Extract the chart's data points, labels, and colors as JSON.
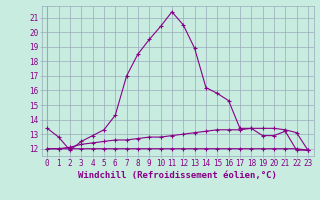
{
  "xlabel": "Windchill (Refroidissement éolien,°C)",
  "background_color": "#c8ece0",
  "grid_color": "#99aabb",
  "line_color": "#880088",
  "x": [
    0,
    1,
    2,
    3,
    4,
    5,
    6,
    7,
    8,
    9,
    10,
    11,
    12,
    13,
    14,
    15,
    16,
    17,
    18,
    19,
    20,
    21,
    22,
    23
  ],
  "curve1": [
    13.4,
    12.8,
    11.9,
    12.5,
    12.9,
    13.3,
    14.3,
    17.0,
    18.5,
    19.5,
    20.4,
    21.4,
    20.5,
    18.9,
    16.2,
    15.8,
    15.3,
    13.4,
    13.4,
    12.9,
    12.9,
    13.2,
    11.9,
    11.9
  ],
  "curve2": [
    12.0,
    12.0,
    12.0,
    12.0,
    12.0,
    12.0,
    12.0,
    12.0,
    12.0,
    12.0,
    12.0,
    12.0,
    12.0,
    12.0,
    12.0,
    12.0,
    12.0,
    12.0,
    12.0,
    12.0,
    12.0,
    12.0,
    12.0,
    11.9
  ],
  "curve3": [
    12.0,
    12.0,
    12.1,
    12.3,
    12.4,
    12.5,
    12.6,
    12.6,
    12.7,
    12.8,
    12.8,
    12.9,
    13.0,
    13.1,
    13.2,
    13.3,
    13.3,
    13.3,
    13.4,
    13.4,
    13.4,
    13.3,
    13.1,
    11.9
  ],
  "ylim": [
    11.5,
    21.8
  ],
  "xlim": [
    -0.5,
    23.5
  ],
  "yticks": [
    12,
    13,
    14,
    15,
    16,
    17,
    18,
    19,
    20,
    21
  ],
  "xticks": [
    0,
    1,
    2,
    3,
    4,
    5,
    6,
    7,
    8,
    9,
    10,
    11,
    12,
    13,
    14,
    15,
    16,
    17,
    18,
    19,
    20,
    21,
    22,
    23
  ],
  "tick_label_fontsize": 5.5,
  "xlabel_fontsize": 6.5,
  "marker": "+",
  "markersize": 3.5,
  "linewidth": 0.8
}
